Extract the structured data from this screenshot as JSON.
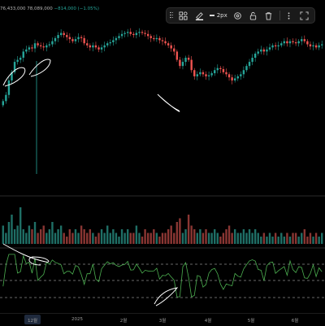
{
  "legend": {
    "ohlc_text": "76,433,000 ",
    "ohlc_close": "78,089,000",
    "ohlc_change": "−814,000 (−1.05%)"
  },
  "toolbar": {
    "width_label": "2px",
    "tools": [
      {
        "name": "templates-icon"
      },
      {
        "name": "line-color-icon"
      },
      {
        "name": "settings-icon"
      },
      {
        "name": "lock-icon"
      },
      {
        "name": "delete-icon"
      },
      {
        "name": "more-icon"
      }
    ]
  },
  "xaxis": {
    "labels": [
      "12월",
      "2025",
      "2월",
      "3월",
      "4월",
      "5월",
      "6월"
    ],
    "highlighted": "12월"
  },
  "colors": {
    "up": "#26a69a",
    "down": "#ef5350",
    "oscillator": "#4caf50",
    "drawing": "#ffffff",
    "background": "#000000"
  },
  "chart_data": {
    "type": "candlestick",
    "title": "",
    "xlabel": "",
    "ylabel": "",
    "months": [
      "12월",
      "2025",
      "2월",
      "3월",
      "4월",
      "5월",
      "6월"
    ],
    "closes": [
      0.32,
      0.38,
      0.52,
      0.6,
      0.7,
      0.72,
      0.74,
      0.8,
      0.82,
      0.84,
      0.83,
      0.88,
      0.86,
      0.85,
      0.84,
      0.86,
      0.87,
      0.9,
      0.93,
      0.96,
      0.98,
      0.96,
      0.94,
      0.92,
      0.9,
      0.92,
      0.94,
      0.93,
      0.88,
      0.86,
      0.84,
      0.86,
      0.84,
      0.82,
      0.84,
      0.86,
      0.88,
      0.89,
      0.91,
      0.93,
      0.95,
      0.97,
      0.98,
      0.99,
      0.97,
      0.96,
      0.98,
      0.99,
      0.98,
      0.97,
      0.95,
      0.93,
      0.92,
      0.93,
      0.91,
      0.9,
      0.88,
      0.86,
      0.83,
      0.8,
      0.72,
      0.66,
      0.7,
      0.74,
      0.72,
      0.62,
      0.56,
      0.58,
      0.6,
      0.58,
      0.56,
      0.57,
      0.59,
      0.62,
      0.64,
      0.63,
      0.6,
      0.58,
      0.55,
      0.52,
      0.54,
      0.56,
      0.58,
      0.62,
      0.66,
      0.7,
      0.74,
      0.78,
      0.8,
      0.82,
      0.8,
      0.82,
      0.84,
      0.86,
      0.85,
      0.86,
      0.88,
      0.9,
      0.88,
      0.9,
      0.89,
      0.88,
      0.9,
      0.92,
      0.9,
      0.87,
      0.85,
      0.86,
      0.84,
      0.86,
      0.87
    ],
    "volume": [
      0.5,
      0.3,
      0.6,
      0.8,
      0.4,
      0.5,
      1.0,
      0.4,
      0.3,
      0.5,
      0.4,
      0.6,
      0.3,
      0.4,
      0.5,
      0.3,
      0.4,
      0.6,
      0.3,
      0.4,
      0.5,
      0.3,
      0.2,
      0.4,
      0.3,
      0.4,
      0.3,
      0.5,
      0.4,
      0.3,
      0.4,
      0.3,
      0.2,
      0.3,
      0.4,
      0.3,
      0.5,
      0.3,
      0.4,
      0.3,
      0.2,
      0.4,
      0.3,
      0.4,
      0.3,
      0.3,
      0.5,
      0.3,
      0.2,
      0.4,
      0.3,
      0.3,
      0.4,
      0.3,
      0.2,
      0.3,
      0.3,
      0.4,
      0.5,
      0.3,
      0.6,
      0.7,
      0.3,
      0.4,
      0.8,
      0.5,
      0.4,
      0.3,
      0.4,
      0.3,
      0.4,
      0.3,
      0.3,
      0.4,
      0.3,
      0.2,
      0.3,
      0.4,
      0.5,
      0.3,
      0.4,
      0.3,
      0.3,
      0.4,
      0.3,
      0.4,
      0.3,
      0.4,
      0.3,
      0.2,
      0.3,
      0.2,
      0.3,
      0.2,
      0.3,
      0.2,
      0.3,
      0.2,
      0.3,
      0.2,
      0.3,
      0.3,
      0.2,
      0.3,
      0.4,
      0.2,
      0.3,
      0.2,
      0.3,
      0.2,
      0.3
    ]
  }
}
